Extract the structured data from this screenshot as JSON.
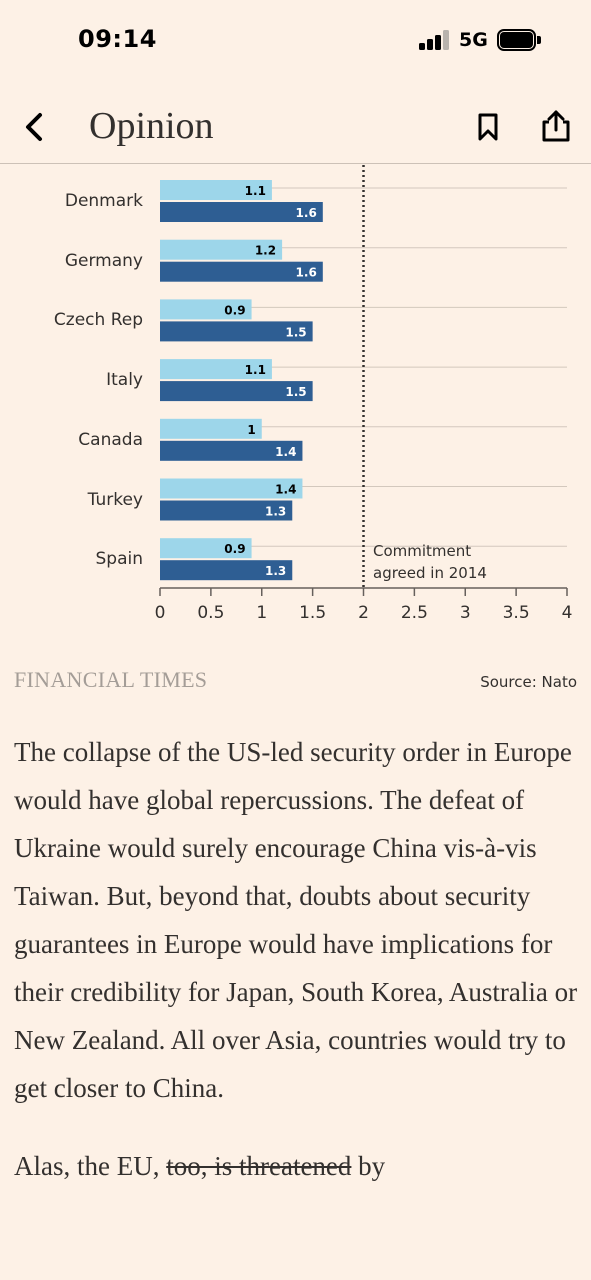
{
  "status_bar": {
    "time": "09:14",
    "network": "5G"
  },
  "nav": {
    "back_icon": "chevron-left-icon",
    "title": "Opinion",
    "bookmark_icon": "bookmark-icon",
    "share_icon": "share-icon"
  },
  "chart_data": {
    "type": "bar",
    "orientation": "horizontal",
    "categories": [
      "Denmark",
      "Germany",
      "Czech Rep",
      "Italy",
      "Canada",
      "Turkey",
      "Spain"
    ],
    "series": [
      {
        "values": [
          1.1,
          1.2,
          0.9,
          1.1,
          1,
          1.4,
          0.9
        ],
        "color": "#9dd6ea"
      },
      {
        "values": [
          1.6,
          1.6,
          1.5,
          1.5,
          1.4,
          1.3,
          1.3
        ],
        "color": "#2e5e93"
      }
    ],
    "xlim": [
      0,
      4
    ],
    "x_ticks": [
      "0",
      "0.5",
      "1",
      "1.5",
      "2",
      "2.5",
      "3",
      "3.5",
      "4"
    ],
    "reference_line": {
      "value": 2,
      "style": "dotted",
      "label_line1": "Commitment",
      "label_line2": "agreed in 2014"
    },
    "grid": true
  },
  "chart_footer": {
    "brand": "FINANCIAL TIMES",
    "source": "Source: Nato"
  },
  "article": {
    "paragraph1": "The collapse of the US-led security order in Europe would have global repercussions. The defeat of Ukraine would surely encourage China vis-à-vis Taiwan. But, beyond that, doubts about security guarantees in Europe would have implications for their credibility for Japan, South Korea, Australia or New Zealand. All over Asia, countries would try to get closer to China.",
    "paragraph2_start": "Alas, the EU, ",
    "paragraph2_struck": "too, is threatened",
    "paragraph2_end": " by"
  }
}
